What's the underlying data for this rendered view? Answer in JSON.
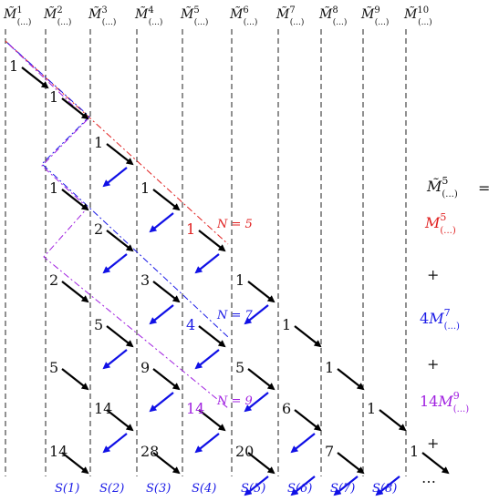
{
  "headers": [
    {
      "base": "M̃",
      "sup": "1",
      "sub": "(...)"
    },
    {
      "base": "M̃",
      "sup": "2",
      "sub": "(...)"
    },
    {
      "base": "M̃",
      "sup": "3",
      "sub": "(...)"
    },
    {
      "base": "M̃",
      "sup": "4",
      "sub": "(...)"
    },
    {
      "base": "M̃",
      "sup": "5",
      "sub": "(...)"
    },
    {
      "base": "M̃",
      "sup": "6",
      "sub": "(...)"
    },
    {
      "base": "M̃",
      "sup": "7",
      "sub": "(...)"
    },
    {
      "base": "M̃",
      "sup": "8",
      "sub": "(...)"
    },
    {
      "base": "M̃",
      "sup": "9",
      "sub": "(...)"
    },
    {
      "base": "M̃",
      "sup": "10",
      "sub": "(...)"
    }
  ],
  "entries": [
    {
      "col": 0,
      "row": 0,
      "text": "1"
    },
    {
      "col": 1,
      "row": 1,
      "text": "1"
    },
    {
      "col": 1,
      "row": 3,
      "text": "1"
    },
    {
      "col": 1,
      "row": 5,
      "text": "2"
    },
    {
      "col": 1,
      "row": 7,
      "text": "5"
    },
    {
      "col": 1,
      "row": 9,
      "text": "14"
    },
    {
      "col": 2,
      "row": 2,
      "text": "1"
    },
    {
      "col": 2,
      "row": 4,
      "text": "2"
    },
    {
      "col": 2,
      "row": 6,
      "text": "5"
    },
    {
      "col": 2,
      "row": 8,
      "text": "14"
    },
    {
      "col": 3,
      "row": 3,
      "text": "1"
    },
    {
      "col": 3,
      "row": 5,
      "text": "3"
    },
    {
      "col": 3,
      "row": 7,
      "text": "9"
    },
    {
      "col": 3,
      "row": 9,
      "text": "28"
    },
    {
      "col": 4,
      "row": 4,
      "text": "1",
      "color": "#e02020"
    },
    {
      "col": 4,
      "row": 6,
      "text": "4",
      "color": "#1a1ae6"
    },
    {
      "col": 4,
      "row": 8,
      "text": "14",
      "color": "#a020e0"
    },
    {
      "col": 5,
      "row": 5,
      "text": "1"
    },
    {
      "col": 5,
      "row": 7,
      "text": "5"
    },
    {
      "col": 5,
      "row": 9,
      "text": "20"
    },
    {
      "col": 6,
      "row": 6,
      "text": "1"
    },
    {
      "col": 6,
      "row": 8,
      "text": "6"
    },
    {
      "col": 7,
      "row": 7,
      "text": "1"
    },
    {
      "col": 7,
      "row": 9,
      "text": "7"
    },
    {
      "col": 8,
      "row": 8,
      "text": "1"
    },
    {
      "col": 9,
      "row": 9,
      "text": "1"
    }
  ],
  "s_labels": [
    "S(1)",
    "S(2)",
    "S(3)",
    "S(4)",
    "S(5)",
    "S(6)",
    "S(7)",
    "S(8)"
  ],
  "n_labels": [
    {
      "text": "N = 5",
      "color": "#e02020"
    },
    {
      "text": "N = 7",
      "color": "#1a1ae6"
    },
    {
      "text": "N = 9",
      "color": "#a020e0"
    }
  ],
  "rhs": {
    "lhs_base": "M̃",
    "lhs_sup": "5",
    "lhs_sub": "(...)",
    "equals": "=",
    "term1": {
      "coef": "",
      "base": "M",
      "sup": "5",
      "sub": "(...)",
      "color": "#e02020"
    },
    "plus": "+",
    "term2": {
      "coef": "4",
      "base": "M",
      "sup": "7",
      "sub": "(...)",
      "color": "#1a1ae6"
    },
    "term3": {
      "coef": "14",
      "base": "M",
      "sup": "9",
      "sub": "(...)",
      "color": "#a020e0"
    },
    "ellipsis": "…"
  },
  "colors": {
    "black_arrow": "#000000",
    "blue_arrow": "#1010e6",
    "red": "#e02020",
    "blue": "#1a1ae6",
    "purple": "#a020e0"
  }
}
